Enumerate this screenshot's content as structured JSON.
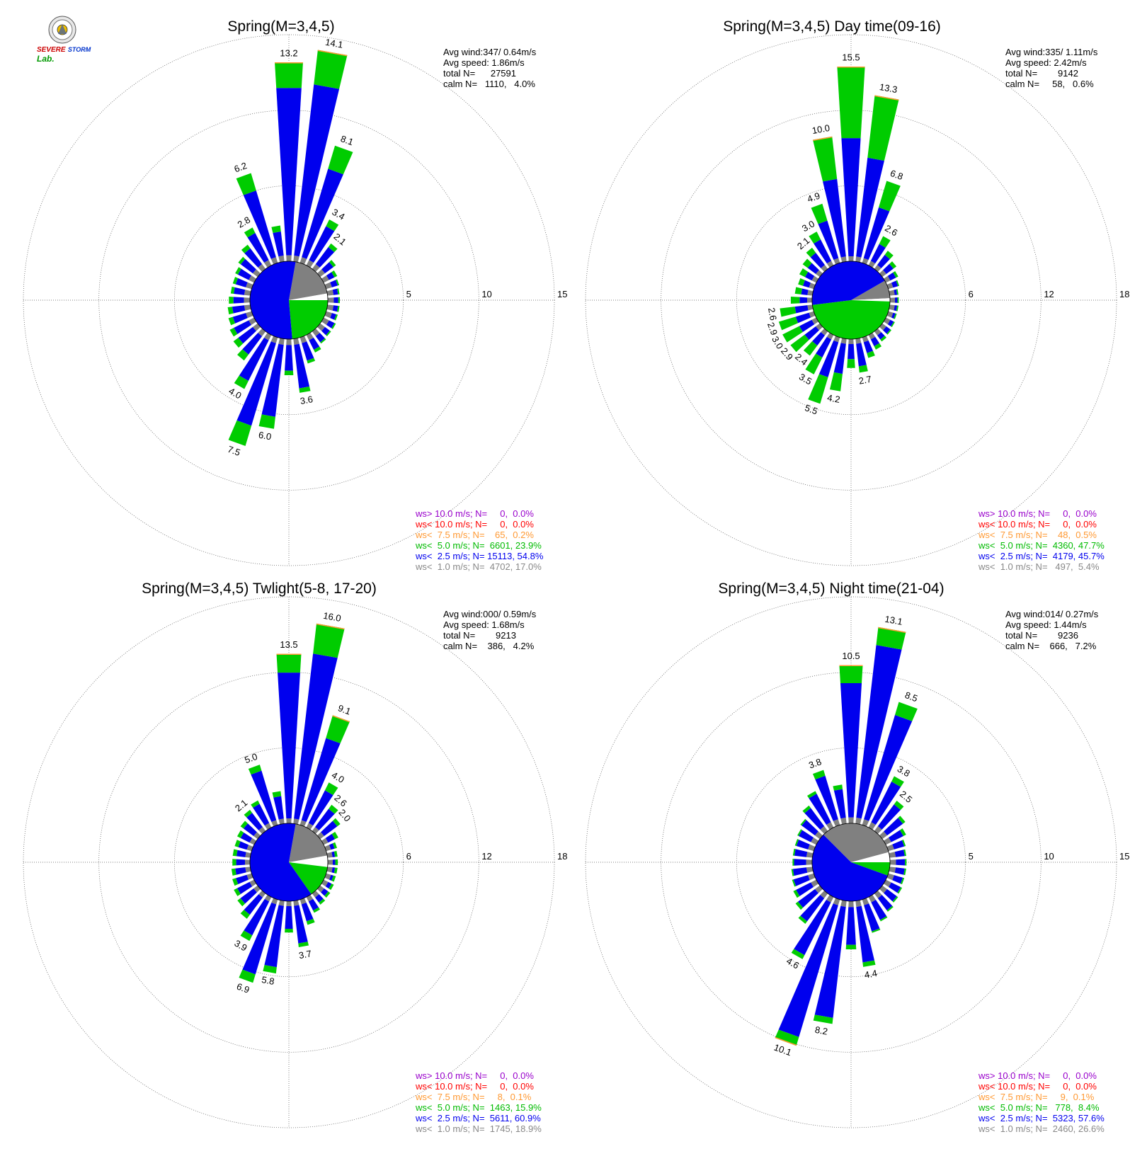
{
  "logo": {
    "line1": "SEVERE",
    "line2": "STORM",
    "line3": "Lab."
  },
  "chart_data": [
    {
      "type": "polar-bar",
      "title": "Spring(M=3,4,5)",
      "rings": [
        5,
        10,
        15
      ],
      "rmax": 15,
      "stats": [
        "Avg wind:347/ 0.64m/s",
        "Avg speed: 1.86m/s",
        "total N=      27591",
        "calm N=   1110,   4.0%"
      ],
      "bars": [
        {
          "dir": 0,
          "total": 13.2,
          "blue": 11.5,
          "label": "13.2"
        },
        {
          "dir": 10,
          "total": 14.1,
          "blue": 11.8,
          "label": "14.1"
        },
        {
          "dir": 20,
          "total": 8.1,
          "blue": 6.5,
          "label": "8.1"
        },
        {
          "dir": 30,
          "total": 3.4,
          "blue": 2.9,
          "label": "3.4"
        },
        {
          "dir": 40,
          "total": 2.1,
          "blue": 1.8,
          "label": "2.1"
        },
        {
          "dir": 50,
          "total": 1.3,
          "blue": 1.1
        },
        {
          "dir": 60,
          "total": 1.0,
          "blue": 0.8
        },
        {
          "dir": 70,
          "total": 0.9,
          "blue": 0.8
        },
        {
          "dir": 80,
          "total": 0.8,
          "blue": 0.7
        },
        {
          "dir": 90,
          "total": 0.8,
          "blue": 0.7
        },
        {
          "dir": 100,
          "total": 0.8,
          "blue": 0.7
        },
        {
          "dir": 110,
          "total": 0.8,
          "blue": 0.7
        },
        {
          "dir": 120,
          "total": 0.9,
          "blue": 0.8
        },
        {
          "dir": 130,
          "total": 0.9,
          "blue": 0.8
        },
        {
          "dir": 140,
          "total": 1.0,
          "blue": 0.9
        },
        {
          "dir": 150,
          "total": 1.3,
          "blue": 1.1
        },
        {
          "dir": 160,
          "total": 1.8,
          "blue": 1.6
        },
        {
          "dir": 170,
          "total": 3.6,
          "blue": 3.3,
          "label": "3.6"
        },
        {
          "dir": 180,
          "total": 2.4,
          "blue": 2.1
        },
        {
          "dir": 190,
          "total": 6.0,
          "blue": 5.2,
          "label": "6.0"
        },
        {
          "dir": 200,
          "total": 7.5,
          "blue": 6.1,
          "label": "7.5"
        },
        {
          "dir": 210,
          "total": 4.0,
          "blue": 3.4,
          "label": "4.0"
        },
        {
          "dir": 220,
          "total": 2.4,
          "blue": 1.9
        },
        {
          "dir": 230,
          "total": 2.0,
          "blue": 1.6
        },
        {
          "dir": 240,
          "total": 1.8,
          "blue": 1.5
        },
        {
          "dir": 250,
          "total": 1.6,
          "blue": 1.3
        },
        {
          "dir": 260,
          "total": 1.5,
          "blue": 1.2
        },
        {
          "dir": 270,
          "total": 1.4,
          "blue": 1.1
        },
        {
          "dir": 280,
          "total": 1.3,
          "blue": 1.1
        },
        {
          "dir": 290,
          "total": 1.3,
          "blue": 1.1
        },
        {
          "dir": 300,
          "total": 1.4,
          "blue": 1.2
        },
        {
          "dir": 310,
          "total": 1.6,
          "blue": 1.4
        },
        {
          "dir": 320,
          "total": 2.0,
          "blue": 1.7
        },
        {
          "dir": 330,
          "total": 2.8,
          "blue": 2.4,
          "label": "2.8"
        },
        {
          "dir": 340,
          "total": 6.2,
          "blue": 5.0,
          "label": "6.2"
        },
        {
          "dir": 350,
          "total": 2.4,
          "blue": 2.0
        }
      ],
      "pie": [
        {
          "from": 10,
          "to": 80,
          "color": "#808080"
        },
        {
          "from": 80,
          "to": 90,
          "color": "#ffffff"
        },
        {
          "from": 90,
          "to": 175,
          "color": "#00cc00"
        },
        {
          "from": 175,
          "to": 370,
          "color": "#0000ee"
        }
      ],
      "legend": [
        {
          "text": "ws> 10.0 m/s; N=     0,  0.0%",
          "color": "#9900cc"
        },
        {
          "text": "ws< 10.0 m/s; N=     0,  0.0%",
          "color": "#ff0000"
        },
        {
          "text": "ws<  7.5 m/s; N=    65,  0.2%",
          "color": "#ff9933"
        },
        {
          "text": "ws<  5.0 m/s; N=  6601, 23.9%",
          "color": "#00bb00"
        },
        {
          "text": "ws<  2.5 m/s; N= 15113, 54.8%",
          "color": "#0000ee"
        },
        {
          "text": "ws<  1.0 m/s; N=  4702, 17.0%",
          "color": "#888888"
        }
      ]
    },
    {
      "type": "polar-bar",
      "title": "Spring(M=3,4,5) Day time(09-16)",
      "rings": [
        6,
        12,
        18
      ],
      "rmax": 18,
      "stats": [
        "Avg wind:335/ 1.11m/s",
        "Avg speed: 2.42m/s",
        "total N=        9142",
        "calm N=     58,   0.6%"
      ],
      "bars": [
        {
          "dir": 0,
          "total": 15.5,
          "blue": 9.8,
          "label": "15.5"
        },
        {
          "dir": 10,
          "total": 13.3,
          "blue": 8.3,
          "label": "13.3"
        },
        {
          "dir": 20,
          "total": 6.8,
          "blue": 4.6,
          "label": "6.8"
        },
        {
          "dir": 30,
          "total": 2.6,
          "blue": 1.9,
          "label": "2.6"
        },
        {
          "dir": 40,
          "total": 1.8,
          "blue": 1.4
        },
        {
          "dir": 50,
          "total": 1.4,
          "blue": 1.1
        },
        {
          "dir": 60,
          "total": 1.1,
          "blue": 0.9
        },
        {
          "dir": 70,
          "total": 0.9,
          "blue": 0.8
        },
        {
          "dir": 80,
          "total": 0.7,
          "blue": 0.6
        },
        {
          "dir": 90,
          "total": 0.7,
          "blue": 0.6
        },
        {
          "dir": 100,
          "total": 0.7,
          "blue": 0.6
        },
        {
          "dir": 110,
          "total": 0.7,
          "blue": 0.6
        },
        {
          "dir": 120,
          "total": 0.8,
          "blue": 0.7
        },
        {
          "dir": 130,
          "total": 0.9,
          "blue": 0.8
        },
        {
          "dir": 140,
          "total": 1.0,
          "blue": 0.8
        },
        {
          "dir": 150,
          "total": 1.3,
          "blue": 1.0
        },
        {
          "dir": 160,
          "total": 1.7,
          "blue": 1.3
        },
        {
          "dir": 170,
          "total": 2.7,
          "blue": 2.2,
          "label": "2.7"
        },
        {
          "dir": 180,
          "total": 2.3,
          "blue": 1.6
        },
        {
          "dir": 190,
          "total": 4.2,
          "blue": 2.8,
          "label": "4.2"
        },
        {
          "dir": 200,
          "total": 5.5,
          "blue": 3.3,
          "label": "5.5"
        },
        {
          "dir": 210,
          "total": 3.5,
          "blue": 2.0,
          "label": "3.5"
        },
        {
          "dir": 220,
          "total": 2.4,
          "blue": 1.4,
          "label": "2.4"
        },
        {
          "dir": 230,
          "total": 2.9,
          "blue": 1.5,
          "label": "2.9"
        },
        {
          "dir": 240,
          "total": 3.0,
          "blue": 1.5,
          "label": "3.0"
        },
        {
          "dir": 250,
          "total": 2.9,
          "blue": 1.5,
          "label": "2.9"
        },
        {
          "dir": 260,
          "total": 2.6,
          "blue": 1.4,
          "label": "2.6"
        },
        {
          "dir": 270,
          "total": 1.7,
          "blue": 1.0
        },
        {
          "dir": 280,
          "total": 1.4,
          "blue": 0.9
        },
        {
          "dir": 290,
          "total": 1.3,
          "blue": 0.9
        },
        {
          "dir": 300,
          "total": 1.5,
          "blue": 1.0
        },
        {
          "dir": 310,
          "total": 1.7,
          "blue": 1.2
        },
        {
          "dir": 320,
          "total": 2.1,
          "blue": 1.6,
          "label": "2.1"
        },
        {
          "dir": 330,
          "total": 3.0,
          "blue": 2.3,
          "label": "3.0"
        },
        {
          "dir": 340,
          "total": 4.9,
          "blue": 3.5,
          "label": "4.9"
        },
        {
          "dir": 350,
          "total": 10.0,
          "blue": 6.6,
          "label": "10.0"
        }
      ],
      "pie": [
        {
          "from": 60,
          "to": 87,
          "color": "#808080"
        },
        {
          "from": 87,
          "to": 92,
          "color": "#ffffff"
        },
        {
          "from": 92,
          "to": 263,
          "color": "#00cc00"
        },
        {
          "from": 263,
          "to": 420,
          "color": "#0000ee"
        }
      ],
      "legend": [
        {
          "text": "ws> 10.0 m/s; N=     0,  0.0%",
          "color": "#9900cc"
        },
        {
          "text": "ws< 10.0 m/s; N=     0,  0.0%",
          "color": "#ff0000"
        },
        {
          "text": "ws<  7.5 m/s; N=    48,  0.5%",
          "color": "#ff9933"
        },
        {
          "text": "ws<  5.0 m/s; N=  4360, 47.7%",
          "color": "#00bb00"
        },
        {
          "text": "ws<  2.5 m/s; N=  4179, 45.7%",
          "color": "#0000ee"
        },
        {
          "text": "ws<  1.0 m/s; N=   497,  5.4%",
          "color": "#888888"
        }
      ]
    },
    {
      "type": "polar-bar",
      "title": "Spring(M=3,4,5) Twlight(5-8, 17-20)",
      "rings": [
        6,
        12,
        18
      ],
      "rmax": 18,
      "stats": [
        "Avg wind:000/ 0.59m/s",
        "Avg speed: 1.68m/s",
        "total N=        9213",
        "calm N=    386,   4.2%"
      ],
      "bars": [
        {
          "dir": 0,
          "total": 13.5,
          "blue": 12.0,
          "label": "13.5"
        },
        {
          "dir": 10,
          "total": 16.0,
          "blue": 13.6,
          "label": "16.0"
        },
        {
          "dir": 20,
          "total": 9.1,
          "blue": 7.2,
          "label": "9.1"
        },
        {
          "dir": 30,
          "total": 4.0,
          "blue": 3.3,
          "label": "4.0"
        },
        {
          "dir": 40,
          "total": 2.6,
          "blue": 2.2,
          "label": "2.6"
        },
        {
          "dir": 50,
          "total": 2.0,
          "blue": 1.7,
          "label": "2.0"
        },
        {
          "dir": 60,
          "total": 1.3,
          "blue": 1.0
        },
        {
          "dir": 70,
          "total": 0.9,
          "blue": 0.7
        },
        {
          "dir": 80,
          "total": 0.8,
          "blue": 0.6
        },
        {
          "dir": 90,
          "total": 0.8,
          "blue": 0.6
        },
        {
          "dir": 100,
          "total": 0.8,
          "blue": 0.6
        },
        {
          "dir": 110,
          "total": 0.8,
          "blue": 0.6
        },
        {
          "dir": 120,
          "total": 0.9,
          "blue": 0.7
        },
        {
          "dir": 130,
          "total": 1.0,
          "blue": 0.8
        },
        {
          "dir": 140,
          "total": 1.1,
          "blue": 0.9
        },
        {
          "dir": 150,
          "total": 1.4,
          "blue": 1.2
        },
        {
          "dir": 160,
          "total": 2.1,
          "blue": 1.8
        },
        {
          "dir": 170,
          "total": 3.7,
          "blue": 3.4,
          "label": "3.7"
        },
        {
          "dir": 180,
          "total": 2.5,
          "blue": 2.2
        },
        {
          "dir": 190,
          "total": 5.8,
          "blue": 5.3,
          "label": "5.8"
        },
        {
          "dir": 200,
          "total": 6.9,
          "blue": 6.2,
          "label": "6.9"
        },
        {
          "dir": 210,
          "total": 3.9,
          "blue": 3.4,
          "label": "3.9"
        },
        {
          "dir": 220,
          "total": 2.5,
          "blue": 2.1
        },
        {
          "dir": 230,
          "total": 2.0,
          "blue": 1.7
        },
        {
          "dir": 240,
          "total": 1.8,
          "blue": 1.5
        },
        {
          "dir": 250,
          "total": 1.6,
          "blue": 1.3
        },
        {
          "dir": 260,
          "total": 1.5,
          "blue": 1.2
        },
        {
          "dir": 270,
          "total": 1.4,
          "blue": 1.1
        },
        {
          "dir": 280,
          "total": 1.4,
          "blue": 1.1
        },
        {
          "dir": 290,
          "total": 1.4,
          "blue": 1.1
        },
        {
          "dir": 300,
          "total": 1.5,
          "blue": 1.2
        },
        {
          "dir": 310,
          "total": 1.7,
          "blue": 1.4
        },
        {
          "dir": 320,
          "total": 2.1,
          "blue": 1.8,
          "label": "2.1"
        },
        {
          "dir": 330,
          "total": 2.4,
          "blue": 2.1
        },
        {
          "dir": 340,
          "total": 5.0,
          "blue": 4.5,
          "label": "5.0"
        },
        {
          "dir": 350,
          "total": 2.6,
          "blue": 2.2
        }
      ],
      "pie": [
        {
          "from": 10,
          "to": 80,
          "color": "#808080"
        },
        {
          "from": 80,
          "to": 97,
          "color": "#ffffff"
        },
        {
          "from": 97,
          "to": 145,
          "color": "#00cc00"
        },
        {
          "from": 145,
          "to": 370,
          "color": "#0000ee"
        }
      ],
      "legend": [
        {
          "text": "ws> 10.0 m/s; N=     0,  0.0%",
          "color": "#9900cc"
        },
        {
          "text": "ws< 10.0 m/s; N=     0,  0.0%",
          "color": "#ff0000"
        },
        {
          "text": "ws<  7.5 m/s; N=     8,  0.1%",
          "color": "#ff9933"
        },
        {
          "text": "ws<  5.0 m/s; N=  1463, 15.9%",
          "color": "#00bb00"
        },
        {
          "text": "ws<  2.5 m/s; N=  5611, 60.9%",
          "color": "#0000ee"
        },
        {
          "text": "ws<  1.0 m/s; N=  1745, 18.9%",
          "color": "#888888"
        }
      ]
    },
    {
      "type": "polar-bar",
      "title": "Spring(M=3,4,5) Night time(21-04)",
      "rings": [
        5,
        10,
        15
      ],
      "rmax": 15,
      "stats": [
        "Avg wind:014/ 0.27m/s",
        "Avg speed: 1.44m/s",
        "total N=        9236",
        "calm N=    666,   7.2%"
      ],
      "bars": [
        {
          "dir": 0,
          "total": 10.5,
          "blue": 9.3,
          "label": "10.5"
        },
        {
          "dir": 10,
          "total": 13.1,
          "blue": 11.9,
          "label": "13.1"
        },
        {
          "dir": 20,
          "total": 8.5,
          "blue": 7.6,
          "label": "8.5"
        },
        {
          "dir": 30,
          "total": 3.8,
          "blue": 3.4,
          "label": "3.8"
        },
        {
          "dir": 40,
          "total": 2.5,
          "blue": 2.2,
          "label": "2.5"
        },
        {
          "dir": 50,
          "total": 1.9,
          "blue": 1.7
        },
        {
          "dir": 60,
          "total": 1.5,
          "blue": 1.3
        },
        {
          "dir": 70,
          "total": 1.2,
          "blue": 1.1
        },
        {
          "dir": 80,
          "total": 1.1,
          "blue": 1.0
        },
        {
          "dir": 90,
          "total": 1.1,
          "blue": 1.0
        },
        {
          "dir": 100,
          "total": 1.1,
          "blue": 1.0
        },
        {
          "dir": 110,
          "total": 1.1,
          "blue": 1.0
        },
        {
          "dir": 120,
          "total": 1.2,
          "blue": 1.1
        },
        {
          "dir": 130,
          "total": 1.3,
          "blue": 1.2
        },
        {
          "dir": 140,
          "total": 1.5,
          "blue": 1.4
        },
        {
          "dir": 150,
          "total": 1.8,
          "blue": 1.7
        },
        {
          "dir": 160,
          "total": 2.3,
          "blue": 2.2
        },
        {
          "dir": 170,
          "total": 4.4,
          "blue": 4.1,
          "label": "4.4"
        },
        {
          "dir": 180,
          "total": 3.2,
          "blue": 2.9
        },
        {
          "dir": 190,
          "total": 8.2,
          "blue": 7.8,
          "label": "8.2"
        },
        {
          "dir": 200,
          "total": 10.1,
          "blue": 9.5,
          "label": "10.1"
        },
        {
          "dir": 210,
          "total": 4.6,
          "blue": 4.3,
          "label": "4.6"
        },
        {
          "dir": 220,
          "total": 2.5,
          "blue": 2.3
        },
        {
          "dir": 230,
          "total": 2.0,
          "blue": 1.8
        },
        {
          "dir": 240,
          "total": 1.7,
          "blue": 1.5
        },
        {
          "dir": 250,
          "total": 1.5,
          "blue": 1.4
        },
        {
          "dir": 260,
          "total": 1.4,
          "blue": 1.3
        },
        {
          "dir": 270,
          "total": 1.3,
          "blue": 1.2
        },
        {
          "dir": 280,
          "total": 1.3,
          "blue": 1.2
        },
        {
          "dir": 290,
          "total": 1.3,
          "blue": 1.2
        },
        {
          "dir": 300,
          "total": 1.4,
          "blue": 1.3
        },
        {
          "dir": 310,
          "total": 1.6,
          "blue": 1.5
        },
        {
          "dir": 320,
          "total": 2.1,
          "blue": 1.9
        },
        {
          "dir": 330,
          "total": 2.7,
          "blue": 2.5
        },
        {
          "dir": 340,
          "total": 3.8,
          "blue": 3.4,
          "label": "3.8"
        },
        {
          "dir": 350,
          "total": 2.6,
          "blue": 2.3
        }
      ],
      "pie": [
        {
          "from": 315,
          "to": 435,
          "color": "#808080"
        },
        {
          "from": 75,
          "to": 90,
          "color": "#ffffff"
        },
        {
          "from": 90,
          "to": 110,
          "color": "#00cc00"
        },
        {
          "from": 110,
          "to": 315,
          "color": "#0000ee"
        }
      ],
      "legend": [
        {
          "text": "ws> 10.0 m/s; N=     0,  0.0%",
          "color": "#9900cc"
        },
        {
          "text": "ws< 10.0 m/s; N=     0,  0.0%",
          "color": "#ff0000"
        },
        {
          "text": "ws<  7.5 m/s; N=     9,  0.1%",
          "color": "#ff9933"
        },
        {
          "text": "ws<  5.0 m/s; N=   778,  8.4%",
          "color": "#00bb00"
        },
        {
          "text": "ws<  2.5 m/s; N=  5323, 57.6%",
          "color": "#0000ee"
        },
        {
          "text": "ws<  1.0 m/s; N=  2460, 26.6%",
          "color": "#888888"
        }
      ]
    }
  ]
}
